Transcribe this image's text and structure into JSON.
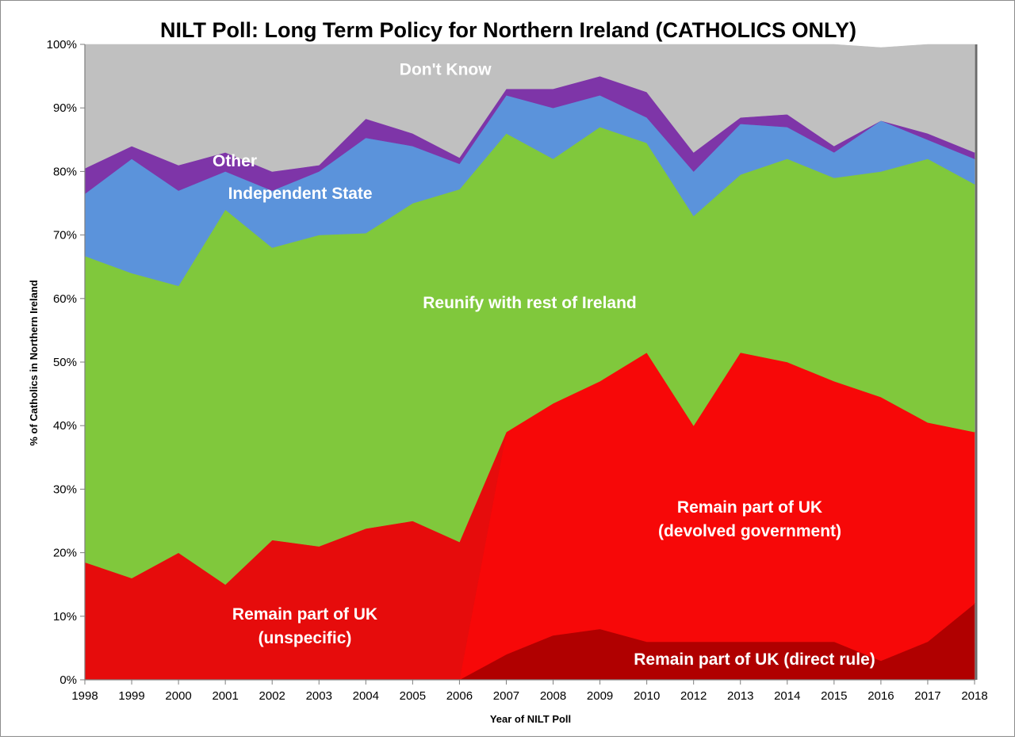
{
  "chart_data": {
    "type": "area",
    "stacked": true,
    "title": "NILT Poll: Long Term Policy for Northern Ireland (CATHOLICS ONLY)",
    "xlabel": "Year of NILT Poll",
    "ylabel": "% of Catholics in Northern Ireland",
    "ylim": [
      0,
      100
    ],
    "y_ticks": [
      "0%",
      "10%",
      "20%",
      "30%",
      "40%",
      "50%",
      "60%",
      "70%",
      "80%",
      "90%",
      "100%"
    ],
    "categories": [
      "1998",
      "1999",
      "2000",
      "2001",
      "2002",
      "2003",
      "2004",
      "2005",
      "2006",
      "2007",
      "2008",
      "2009",
      "2010",
      "2012",
      "2013",
      "2014",
      "2015",
      "2016",
      "2017",
      "2018"
    ],
    "series": [
      {
        "name": "Remain part of UK (direct rule)",
        "color": "#b00000",
        "values": [
          0,
          0,
          0,
          0,
          0,
          0,
          0,
          0,
          0,
          4,
          7,
          8,
          6,
          6,
          6,
          6,
          6,
          3,
          6,
          12
        ]
      },
      {
        "name": "Remain part of UK (devolved government)",
        "color": "#f70808",
        "values": [
          0,
          0,
          0,
          0,
          0,
          0,
          0,
          0,
          0,
          35,
          36.5,
          39,
          45.5,
          34,
          45.5,
          44,
          41,
          41.5,
          34.5,
          27
        ]
      },
      {
        "name": "Remain part of UK (unspecific)",
        "color": "#e60c0c",
        "values": [
          18.5,
          16,
          20,
          15,
          22,
          21,
          23.8,
          25,
          21.7,
          0,
          0,
          0,
          0,
          0,
          0,
          0,
          0,
          0,
          0,
          0
        ]
      },
      {
        "name": "Reunify with rest of Ireland",
        "color": "#80c83c",
        "values": [
          48.2,
          48,
          42,
          59,
          46,
          49,
          46.5,
          50,
          55.5,
          47,
          38.5,
          40,
          33,
          33,
          28,
          32,
          32,
          35.5,
          41.5,
          39
        ]
      },
      {
        "name": "Independent State",
        "color": "#5b93db",
        "values": [
          9.8,
          18,
          15,
          6,
          9,
          10,
          15,
          9,
          4,
          6,
          8,
          5,
          4,
          7,
          8,
          5,
          4,
          8,
          3,
          4
        ]
      },
      {
        "name": "Other",
        "color": "#7e35a8",
        "values": [
          4,
          2,
          4,
          3,
          3,
          1,
          3,
          2,
          1,
          1,
          3,
          3,
          4,
          3,
          1,
          2,
          1,
          0,
          1,
          1
        ]
      },
      {
        "name": "Don't Know",
        "color": "#c0c0c0",
        "values": [
          19.5,
          16,
          19,
          17,
          20,
          19,
          11.7,
          14,
          17.8,
          7,
          7,
          5,
          7.5,
          17,
          11.5,
          11,
          16,
          11.5,
          14,
          17
        ]
      }
    ],
    "area_labels": [
      {
        "series": "Don't Know",
        "lines": [
          "Don't Know"
        ]
      },
      {
        "series": "Other",
        "lines": [
          "Other"
        ]
      },
      {
        "series": "Independent State",
        "lines": [
          "Independent State"
        ]
      },
      {
        "series": "Reunify with rest of Ireland",
        "lines": [
          "Reunify with rest of Ireland"
        ]
      },
      {
        "series": "Remain part of UK (devolved government)",
        "lines": [
          "Remain part of UK",
          "(devolved government)"
        ]
      },
      {
        "series": "Remain part of UK (unspecific)",
        "lines": [
          "Remain part of UK",
          "(unspecific)"
        ]
      },
      {
        "series": "Remain part of UK (direct rule)",
        "lines": [
          "Remain part of UK (direct rule)"
        ]
      }
    ]
  }
}
